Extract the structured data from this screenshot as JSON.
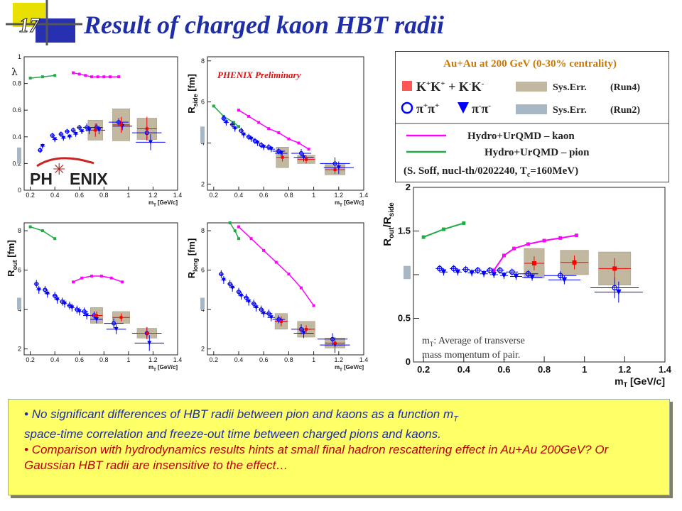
{
  "slide": {
    "title": "Result of charged kaon HBT radii",
    "number": "17",
    "phenix_text": "PHENIX Preliminary",
    "logo_left": "PH",
    "logo_right": "ENIX",
    "bullets": [
      "No significant differences of HBT radii between pion and kaons as a function m",
      "space-time correlation and freeze-out time between charged pions and kaons.",
      "Comparison with hydrodynamics results hints at small final hadron rescattering effect in Au+Au 200GeV? Or Gaussian HBT radii are insensitive to the effect…"
    ],
    "bullet_sub": "T",
    "colors": {
      "title": "#1f2ea8",
      "kaon": "#ff0000",
      "pion": "#0000ff",
      "sys_run4": "#c2b8a0",
      "sys_run2": "#a7b7c3",
      "hydro_kaon": "#ff00ff",
      "hydro_pion": "#22aa44",
      "bullet_box": "#ffff66"
    }
  },
  "legend": {
    "header": "Au+Au at 200 GeV (0-30% centrality)",
    "kaon_label": "K",
    "kaon_plus_label": "+",
    "pion_label": "π",
    "sys_err": "Sys.Err.",
    "run4": "(Run4)",
    "run2": "(Run2)",
    "hydro_kaon": "Hydro+UrQMD – kaon",
    "hydro_pion": "Hydro+UrQMD – pion",
    "ref": "(S. Soff, nucl-th/0202240, T",
    "ref_sub": "c",
    "ref_end": "=160MeV)"
  },
  "note": {
    "text1": "m",
    "sub": "T",
    "text2": ": Average of transverse",
    "text3": "mass momentum of pair."
  },
  "chart_data": [
    {
      "id": "lambda",
      "type": "scatter",
      "ylabel": "λ",
      "xlabel": "m",
      "xlabel_sub": "T",
      "xlabel_unit": " [GeV/c]",
      "xlim": [
        0.15,
        1.4
      ],
      "ylim": [
        0,
        1.0
      ],
      "xticks": [
        "0.2",
        "0.4",
        "0.6",
        "0.8",
        "1",
        "1.2",
        "1.4"
      ],
      "yticks": [
        "0",
        "0.2",
        "0.4",
        "0.6",
        "0.8",
        "1"
      ],
      "kaon": {
        "x": [
          0.73,
          0.94,
          1.15
        ],
        "y": [
          0.45,
          0.49,
          0.46
        ],
        "xerr": [
          0.06,
          0.07,
          0.08
        ],
        "yerr": [
          0.05,
          0.06,
          0.09
        ],
        "sys": [
          0.15,
          0.24,
          0.16
        ]
      },
      "pion_pp": {
        "x": [
          0.28,
          0.38,
          0.45,
          0.5,
          0.55,
          0.6,
          0.66,
          0.74,
          0.92,
          1.15
        ],
        "y": [
          0.3,
          0.41,
          0.42,
          0.44,
          0.45,
          0.47,
          0.47,
          0.47,
          0.51,
          0.43
        ],
        "xerr": [
          0.02,
          0.02,
          0.02,
          0.02,
          0.02,
          0.02,
          0.03,
          0.05,
          0.08,
          0.12
        ],
        "yerr": [
          0.02,
          0.02,
          0.02,
          0.02,
          0.02,
          0.02,
          0.03,
          0.03,
          0.03,
          0.05
        ]
      },
      "pion_mm": {
        "x": [
          0.3,
          0.4,
          0.47,
          0.52,
          0.57,
          0.62,
          0.68,
          0.76,
          0.95,
          1.18
        ],
        "y": [
          0.33,
          0.38,
          0.39,
          0.4,
          0.42,
          0.44,
          0.45,
          0.45,
          0.48,
          0.36
        ],
        "xerr": [
          0.02,
          0.02,
          0.02,
          0.02,
          0.02,
          0.02,
          0.03,
          0.05,
          0.08,
          0.12
        ],
        "yerr": [
          0.02,
          0.02,
          0.02,
          0.02,
          0.02,
          0.02,
          0.03,
          0.03,
          0.03,
          0.06
        ]
      },
      "hydro_kaon": {
        "x": [
          0.55,
          0.6,
          0.65,
          0.7,
          0.75,
          0.8,
          0.85,
          0.92
        ],
        "y": [
          0.88,
          0.87,
          0.86,
          0.85,
          0.85,
          0.85,
          0.85,
          0.85
        ]
      },
      "hydro_pion": {
        "x": [
          0.2,
          0.3,
          0.4
        ],
        "y": [
          0.84,
          0.85,
          0.86
        ]
      },
      "run2_sys": [
        0.2,
        0.32
      ]
    },
    {
      "id": "rside",
      "type": "scatter",
      "ylabel": "R",
      "ylabel_sub": "side",
      "yunit": " [fm]",
      "xlabel": "m",
      "xlabel_sub": "T",
      "xlabel_unit": " [GeV/c]",
      "xlim": [
        0.15,
        1.4
      ],
      "ylim": [
        1.7,
        8.2
      ],
      "xticks": [
        "0.2",
        "0.4",
        "0.6",
        "0.8",
        "1",
        "1.2",
        "1.4"
      ],
      "yticks": [
        "2",
        "4",
        "6",
        "8"
      ],
      "kaon": {
        "x": [
          0.75,
          0.94,
          1.17
        ],
        "y": [
          3.3,
          3.2,
          2.7
        ],
        "xerr": [
          0.05,
          0.07,
          0.08
        ],
        "yerr": [
          0.2,
          0.2,
          0.2
        ],
        "sys": [
          1.0,
          0.4,
          0.5
        ]
      },
      "pion_pp": {
        "x": [
          0.28,
          0.35,
          0.42,
          0.48,
          0.53,
          0.58,
          0.64,
          0.72,
          0.9,
          1.17
        ],
        "y": [
          5.2,
          4.9,
          4.6,
          4.3,
          4.1,
          3.9,
          3.8,
          3.6,
          3.5,
          3.0
        ],
        "xerr": [
          0.02,
          0.02,
          0.02,
          0.02,
          0.02,
          0.02,
          0.03,
          0.05,
          0.08,
          0.12
        ],
        "yerr": [
          0.15,
          0.15,
          0.15,
          0.15,
          0.15,
          0.15,
          0.15,
          0.15,
          0.2,
          0.3
        ]
      },
      "pion_mm": {
        "x": [
          0.3,
          0.37,
          0.44,
          0.5,
          0.55,
          0.6,
          0.66,
          0.74,
          0.92,
          1.2
        ],
        "y": [
          5.0,
          4.7,
          4.4,
          4.2,
          4.0,
          3.8,
          3.7,
          3.5,
          3.3,
          2.8
        ],
        "xerr": [
          0.02,
          0.02,
          0.02,
          0.02,
          0.02,
          0.02,
          0.03,
          0.05,
          0.08,
          0.12
        ],
        "yerr": [
          0.15,
          0.15,
          0.15,
          0.15,
          0.15,
          0.15,
          0.15,
          0.15,
          0.2,
          0.3
        ]
      },
      "hydro_kaon": {
        "x": [
          0.4,
          0.48,
          0.56,
          0.64,
          0.72,
          0.8,
          0.88,
          0.96
        ],
        "y": [
          5.6,
          5.3,
          5.0,
          4.7,
          4.5,
          4.2,
          4.0,
          3.7
        ]
      },
      "hydro_pion": {
        "x": [
          0.2,
          0.28,
          0.36,
          0.4
        ],
        "y": [
          5.8,
          5.3,
          5.0,
          4.8
        ]
      },
      "run2_sys": [
        4.0,
        4.8
      ]
    },
    {
      "id": "rout",
      "type": "scatter",
      "ylabel": "R",
      "ylabel_sub": "out",
      "yunit": " [fm]",
      "xlabel": "m",
      "xlabel_sub": "T",
      "xlabel_unit": " [GeV/c]",
      "xlim": [
        0.15,
        1.4
      ],
      "ylim": [
        1.7,
        8.4
      ],
      "xticks": [
        "0.2",
        "0.4",
        "0.6",
        "0.8",
        "1",
        "1.2",
        "1.4"
      ],
      "yticks": [
        "2",
        "4",
        "6",
        "8"
      ],
      "kaon": {
        "x": [
          0.74,
          0.94,
          1.15
        ],
        "y": [
          3.7,
          3.6,
          2.8
        ],
        "xerr": [
          0.05,
          0.07,
          0.08
        ],
        "yerr": [
          0.2,
          0.2,
          0.3
        ],
        "sys": [
          0.8,
          0.6,
          0.5
        ]
      },
      "pion_pp": {
        "x": [
          0.25,
          0.32,
          0.4,
          0.46,
          0.52,
          0.58,
          0.64,
          0.72,
          0.88,
          1.15
        ],
        "y": [
          5.3,
          5.0,
          4.7,
          4.4,
          4.2,
          4.0,
          3.9,
          3.7,
          3.3,
          2.8
        ],
        "xerr": [
          0.02,
          0.02,
          0.02,
          0.02,
          0.02,
          0.02,
          0.03,
          0.05,
          0.08,
          0.12
        ],
        "yerr": [
          0.2,
          0.2,
          0.2,
          0.2,
          0.2,
          0.2,
          0.2,
          0.2,
          0.25,
          0.3
        ]
      },
      "pion_mm": {
        "x": [
          0.27,
          0.34,
          0.42,
          0.48,
          0.54,
          0.6,
          0.66,
          0.74,
          0.9,
          1.17
        ],
        "y": [
          5.0,
          4.8,
          4.5,
          4.3,
          4.1,
          3.9,
          3.7,
          3.5,
          3.0,
          2.3
        ],
        "xerr": [
          0.02,
          0.02,
          0.02,
          0.02,
          0.02,
          0.02,
          0.03,
          0.05,
          0.08,
          0.12
        ],
        "yerr": [
          0.2,
          0.2,
          0.2,
          0.2,
          0.2,
          0.2,
          0.2,
          0.2,
          0.25,
          0.4
        ]
      },
      "hydro_kaon": {
        "x": [
          0.55,
          0.62,
          0.7,
          0.78,
          0.86,
          0.95
        ],
        "y": [
          5.4,
          5.6,
          5.7,
          5.7,
          5.6,
          5.4
        ]
      },
      "hydro_pion": {
        "x": [
          0.2,
          0.3,
          0.4
        ],
        "y": [
          8.2,
          8.0,
          7.6
        ]
      },
      "run2_sys": [
        4.0,
        4.6
      ]
    },
    {
      "id": "rlong",
      "type": "scatter",
      "ylabel": "R",
      "ylabel_sub": "long",
      "yunit": " [fm]",
      "xlabel": "m",
      "xlabel_sub": "T",
      "xlabel_unit": " [GeV/c]",
      "xlim": [
        0.15,
        1.4
      ],
      "ylim": [
        1.7,
        8.4
      ],
      "xticks": [
        "0.2",
        "0.4",
        "0.6",
        "0.8",
        "1",
        "1.2",
        "1.4"
      ],
      "yticks": [
        "2",
        "4",
        "6",
        "8"
      ],
      "kaon": {
        "x": [
          0.74,
          0.94,
          1.17
        ],
        "y": [
          3.4,
          3.0,
          2.3
        ],
        "xerr": [
          0.05,
          0.07,
          0.08
        ],
        "yerr": [
          0.25,
          0.2,
          0.3
        ],
        "sys": [
          0.8,
          0.8,
          0.5
        ]
      },
      "pion_pp": {
        "x": [
          0.26,
          0.33,
          0.4,
          0.46,
          0.52,
          0.58,
          0.64,
          0.72,
          0.9,
          1.15
        ],
        "y": [
          5.8,
          5.3,
          4.9,
          4.6,
          4.3,
          4.0,
          3.8,
          3.5,
          3.0,
          2.5
        ],
        "xerr": [
          0.02,
          0.02,
          0.02,
          0.02,
          0.02,
          0.02,
          0.03,
          0.05,
          0.08,
          0.12
        ],
        "yerr": [
          0.2,
          0.2,
          0.2,
          0.2,
          0.2,
          0.2,
          0.2,
          0.2,
          0.25,
          0.3
        ]
      },
      "pion_mm": {
        "x": [
          0.28,
          0.35,
          0.42,
          0.48,
          0.54,
          0.6,
          0.66,
          0.74,
          0.92,
          1.17
        ],
        "y": [
          5.5,
          5.1,
          4.7,
          4.4,
          4.1,
          3.8,
          3.6,
          3.4,
          2.8,
          2.2
        ],
        "xerr": [
          0.02,
          0.02,
          0.02,
          0.02,
          0.02,
          0.02,
          0.03,
          0.05,
          0.08,
          0.12
        ],
        "yerr": [
          0.2,
          0.2,
          0.2,
          0.2,
          0.2,
          0.2,
          0.2,
          0.2,
          0.25,
          0.4
        ]
      },
      "hydro_kaon": {
        "x": [
          0.4,
          0.5,
          0.6,
          0.7,
          0.8,
          0.9,
          1.0
        ],
        "y": [
          8.2,
          7.6,
          7.0,
          6.4,
          5.8,
          5.1,
          4.2
        ]
      },
      "hydro_pion": {
        "x": [
          0.33,
          0.37,
          0.4
        ],
        "y": [
          8.4,
          8.0,
          7.6
        ]
      },
      "run2_sys": [
        4.0,
        4.6
      ]
    },
    {
      "id": "ratio",
      "type": "scatter",
      "ylabel": "R",
      "ylabel_sub": "out",
      "ylabel_mid": "/R",
      "ylabel_sub2": "side",
      "xlabel": "m",
      "xlabel_sub": "T",
      "xlabel_unit": " [GeV/c]",
      "xlim": [
        0.15,
        1.4
      ],
      "ylim": [
        0,
        2.0
      ],
      "xticks": [
        "0.2",
        "0.4",
        "0.6",
        "0.8",
        "1",
        "1.2",
        "1.4"
      ],
      "yticks": [
        "0",
        "0.5",
        "1",
        "1.5",
        "2"
      ],
      "kaon": {
        "x": [
          0.75,
          0.95,
          1.15
        ],
        "y": [
          1.13,
          1.14,
          1.07
        ],
        "xerr": [
          0.05,
          0.07,
          0.08
        ],
        "yerr": [
          0.08,
          0.08,
          0.12
        ],
        "sys": [
          0.34,
          0.28,
          0.38
        ]
      },
      "pion_pp": {
        "x": [
          0.28,
          0.35,
          0.41,
          0.47,
          0.53,
          0.58,
          0.64,
          0.72,
          0.88,
          1.15
        ],
        "y": [
          1.07,
          1.07,
          1.06,
          1.05,
          1.05,
          1.05,
          1.03,
          1.01,
          0.99,
          0.85
        ],
        "xerr": [
          0.02,
          0.02,
          0.02,
          0.02,
          0.02,
          0.02,
          0.03,
          0.05,
          0.08,
          0.12
        ],
        "yerr": [
          0.04,
          0.04,
          0.04,
          0.04,
          0.04,
          0.04,
          0.04,
          0.04,
          0.05,
          0.12
        ]
      },
      "pion_mm": {
        "x": [
          0.3,
          0.37,
          0.44,
          0.5,
          0.55,
          0.6,
          0.66,
          0.74,
          0.9,
          1.17
        ],
        "y": [
          1.03,
          1.03,
          1.02,
          1.01,
          1.0,
          0.99,
          0.98,
          0.97,
          0.94,
          0.8
        ],
        "xerr": [
          0.02,
          0.02,
          0.02,
          0.02,
          0.02,
          0.02,
          0.03,
          0.05,
          0.08,
          0.12
        ],
        "yerr": [
          0.04,
          0.04,
          0.04,
          0.04,
          0.04,
          0.04,
          0.04,
          0.04,
          0.05,
          0.12
        ]
      },
      "hydro_kaon": {
        "x": [
          0.55,
          0.6,
          0.65,
          0.72,
          0.8,
          0.88,
          0.96
        ],
        "y": [
          1.05,
          1.22,
          1.3,
          1.35,
          1.39,
          1.42,
          1.45
        ]
      },
      "hydro_pion": {
        "x": [
          0.2,
          0.3,
          0.4
        ],
        "y": [
          1.43,
          1.52,
          1.59
        ]
      },
      "run2_sys": [
        0.95,
        1.1
      ]
    }
  ]
}
